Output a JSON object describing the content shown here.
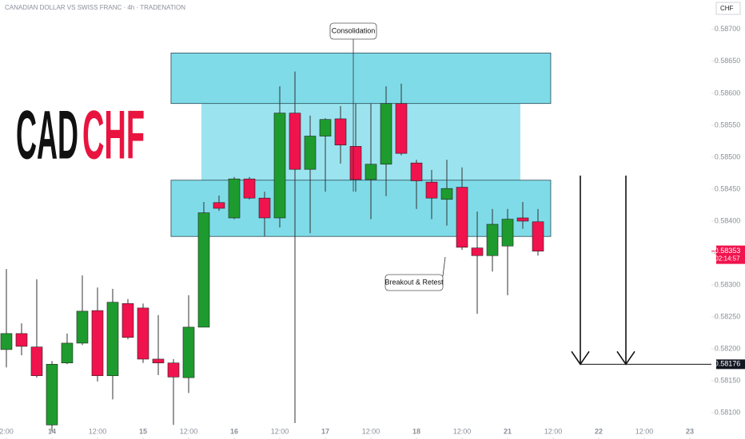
{
  "chart_data": {
    "type": "candlestick",
    "title": "CANADIAN DOLLAR VS SWISS FRANC · 4h · TRADENATION",
    "currency": "CHF",
    "logo": {
      "left": "CAD",
      "right": "CHF"
    },
    "up_color": "#1e9b2e",
    "down_color": "#f0134d",
    "x": [
      0,
      1,
      2,
      3,
      4,
      5,
      6,
      7,
      8,
      9,
      10,
      11,
      12,
      13,
      14,
      15,
      16,
      17,
      18,
      19,
      20,
      21,
      22,
      23,
      24,
      25,
      26,
      27,
      28,
      29,
      30,
      31,
      32,
      33,
      34,
      35
    ],
    "open": [
      0.58199,
      0.58224,
      0.58203,
      0.58081,
      0.58178,
      0.58209,
      0.5826,
      0.58158,
      0.58271,
      0.58264,
      0.58184,
      0.58178,
      0.58155,
      0.58234,
      0.58429,
      0.58405,
      0.58466,
      0.58436,
      0.58405,
      0.58569,
      0.58481,
      0.58533,
      0.5856,
      0.58517,
      0.58465,
      0.58489,
      0.58584,
      0.58491,
      0.58461,
      0.58434,
      0.58453,
      0.58358,
      0.58346,
      0.58361,
      0.58405,
      0.58399
    ],
    "high": [
      0.58325,
      0.5824,
      0.58309,
      0.58181,
      0.58224,
      0.58315,
      0.58296,
      0.58294,
      0.58278,
      0.58271,
      0.58253,
      0.58184,
      0.58284,
      0.5843,
      0.5844,
      0.58469,
      0.58469,
      0.58446,
      0.58611,
      0.58634,
      0.58565,
      0.58561,
      0.5858,
      0.58584,
      0.58584,
      0.58611,
      0.58615,
      0.58496,
      0.5848,
      0.58496,
      0.58484,
      0.58415,
      0.58419,
      0.58419,
      0.5843,
      0.58419
    ],
    "low": [
      0.58171,
      0.5819,
      0.58155,
      0.58071,
      0.58176,
      0.58206,
      0.58149,
      0.58121,
      0.58215,
      0.58178,
      0.58159,
      0.58081,
      0.58131,
      0.58234,
      0.58416,
      0.58403,
      0.58434,
      0.58376,
      0.5839,
      0.58084,
      0.58381,
      0.58446,
      0.5849,
      0.58446,
      0.58403,
      0.58439,
      0.58503,
      0.58419,
      0.58403,
      0.58393,
      0.58355,
      0.58255,
      0.58321,
      0.58284,
      0.58388,
      0.58346
    ],
    "close": [
      0.58224,
      0.58204,
      0.58158,
      0.58176,
      0.58209,
      0.58259,
      0.58158,
      0.58273,
      0.58218,
      0.58184,
      0.58178,
      0.58156,
      0.58234,
      0.58413,
      0.5842,
      0.58466,
      0.58436,
      0.58405,
      0.58569,
      0.58481,
      0.58533,
      0.58559,
      0.58519,
      0.58465,
      0.58489,
      0.58584,
      0.58506,
      0.58463,
      0.58436,
      0.58451,
      0.58359,
      0.58346,
      0.58395,
      0.58403,
      0.584,
      0.58353
    ],
    "xlim": [
      -0.42,
      46.42
    ],
    "ylim": [
      0.58059,
      0.58746
    ],
    "xticks": [
      {
        "value": 0,
        "label": "2:00"
      },
      {
        "value": 3,
        "label": "14"
      },
      {
        "value": 6,
        "label": "12:00"
      },
      {
        "value": 9,
        "label": "15"
      },
      {
        "value": 12,
        "label": "12:00"
      },
      {
        "value": 15,
        "label": "16"
      },
      {
        "value": 18,
        "label": "12:00"
      },
      {
        "value": 21,
        "label": "17"
      },
      {
        "value": 24,
        "label": "12:00"
      },
      {
        "value": 27,
        "label": "18"
      },
      {
        "value": 30,
        "label": "12:00"
      },
      {
        "value": 33,
        "label": "21"
      },
      {
        "value": 36,
        "label": "12:00"
      },
      {
        "value": 39,
        "label": "22"
      },
      {
        "value": 42,
        "label": "12:00"
      },
      {
        "value": 45,
        "label": "23"
      }
    ],
    "yticks": [
      {
        "value": 0.587,
        "label": "0.58700"
      },
      {
        "value": 0.5865,
        "label": "0.58650"
      },
      {
        "value": 0.586,
        "label": "0.58600"
      },
      {
        "value": 0.5855,
        "label": "0.58550"
      },
      {
        "value": 0.585,
        "label": "0.58500"
      },
      {
        "value": 0.5845,
        "label": "0.58450"
      },
      {
        "value": 0.584,
        "label": "0.58400"
      },
      {
        "value": 0.5835,
        "label": "0.58350"
      },
      {
        "value": 0.583,
        "label": "0.58300"
      },
      {
        "value": 0.5825,
        "label": "0.58250"
      },
      {
        "value": 0.582,
        "label": "0.58200"
      },
      {
        "value": 0.5815,
        "label": "0.58150"
      },
      {
        "value": 0.581,
        "label": "0.58100"
      }
    ],
    "zones": [
      {
        "from": 12.84,
        "to": 33.84,
        "top": 0.58584,
        "bottom": 0.58464,
        "color": "#9be4ef"
      },
      {
        "from": 10.84,
        "to": 35.84,
        "top": 0.58663,
        "bottom": 0.58584,
        "color": "#7fdbe8"
      },
      {
        "from": 10.84,
        "to": 35.84,
        "top": 0.58464,
        "bottom": 0.58376,
        "color": "#7fdbe8"
      }
    ],
    "annotations": [
      "Consolidation",
      "Breakout & Retest"
    ],
    "last_price": {
      "value": 0.58353,
      "label": "0.58353"
    },
    "countdown": "02:14:57",
    "target": {
      "value": 0.58176,
      "label": "0.58176"
    }
  }
}
